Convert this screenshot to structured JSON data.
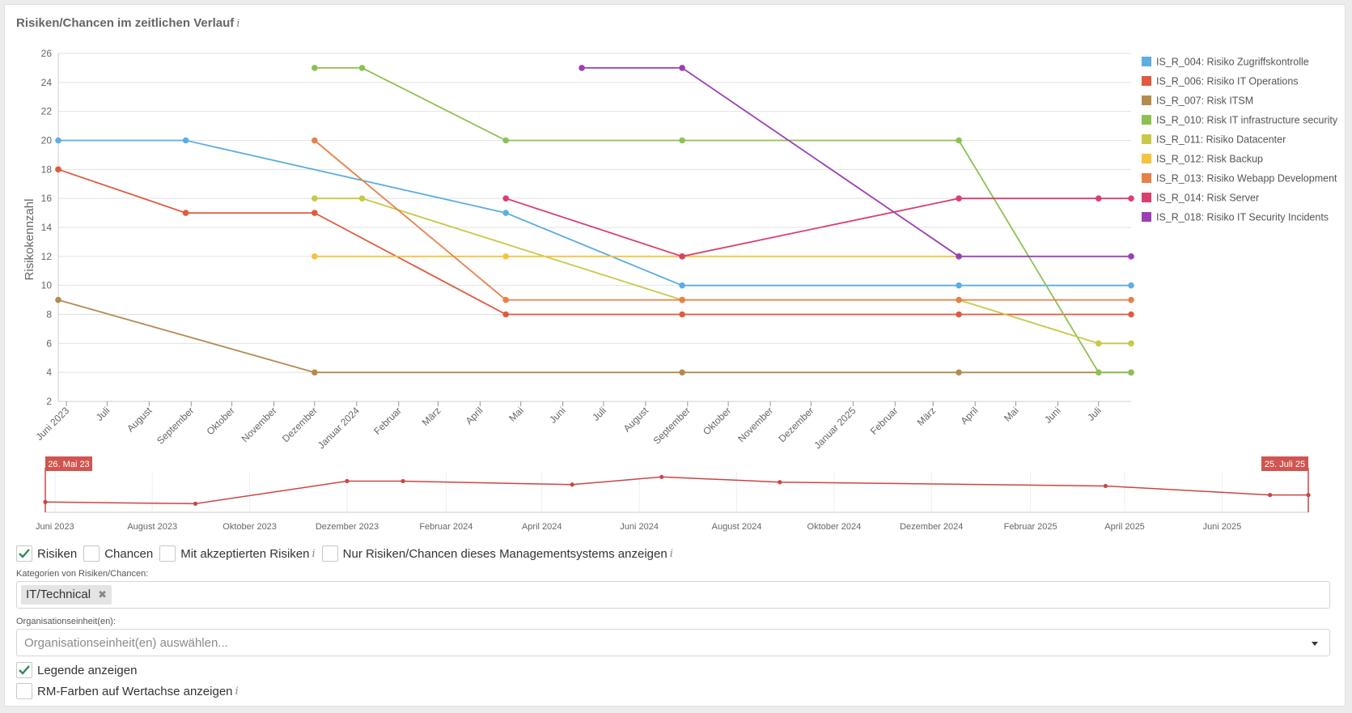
{
  "title": "Risiken/Chancen im zeitlichen Verlauf",
  "title_info": "i",
  "chart_data": {
    "type": "line",
    "title": "Risiken/Chancen im zeitlichen Verlauf",
    "ylabel": "Risikokennzahl",
    "ylim": [
      2,
      26
    ],
    "yticks": [
      2,
      4,
      6,
      8,
      10,
      12,
      14,
      16,
      18,
      20,
      22,
      24,
      26
    ],
    "xlim": [
      "2023-05-26",
      "2025-07-25"
    ],
    "x_ticks": [
      {
        "date": "2023-06-01",
        "label": "Juni 2023"
      },
      {
        "date": "2023-07-01",
        "label": "Juli"
      },
      {
        "date": "2023-08-01",
        "label": "August"
      },
      {
        "date": "2023-09-01",
        "label": "September"
      },
      {
        "date": "2023-10-01",
        "label": "Oktober"
      },
      {
        "date": "2023-11-01",
        "label": "November"
      },
      {
        "date": "2023-12-01",
        "label": "Dezember"
      },
      {
        "date": "2024-01-01",
        "label": "Januar 2024"
      },
      {
        "date": "2024-02-01",
        "label": "Februar"
      },
      {
        "date": "2024-03-01",
        "label": "März"
      },
      {
        "date": "2024-04-01",
        "label": "April"
      },
      {
        "date": "2024-05-01",
        "label": "Mai"
      },
      {
        "date": "2024-06-01",
        "label": "Juni"
      },
      {
        "date": "2024-07-01",
        "label": "Juli"
      },
      {
        "date": "2024-08-01",
        "label": "August"
      },
      {
        "date": "2024-09-01",
        "label": "September"
      },
      {
        "date": "2024-10-01",
        "label": "Oktober"
      },
      {
        "date": "2024-11-01",
        "label": "November"
      },
      {
        "date": "2024-12-01",
        "label": "Dezember"
      },
      {
        "date": "2025-01-01",
        "label": "Januar 2025"
      },
      {
        "date": "2025-02-01",
        "label": "Februar"
      },
      {
        "date": "2025-03-01",
        "label": "März"
      },
      {
        "date": "2025-04-01",
        "label": "April"
      },
      {
        "date": "2025-05-01",
        "label": "Mai"
      },
      {
        "date": "2025-06-01",
        "label": "Juni"
      },
      {
        "date": "2025-07-01",
        "label": "Juli"
      }
    ],
    "legend_position": "right",
    "series": [
      {
        "name": "IS_R_004: Risiko Zugriffskontrolle",
        "color": "#5dade2",
        "points": [
          [
            "2023-05-26",
            20
          ],
          [
            "2023-08-28",
            20
          ],
          [
            "2024-04-20",
            15
          ],
          [
            "2024-08-28",
            10
          ],
          [
            "2025-03-20",
            10
          ],
          [
            "2025-07-25",
            10
          ]
        ]
      },
      {
        "name": "IS_R_006: Risiko IT Operations",
        "color": "#e05a3e",
        "points": [
          [
            "2023-05-26",
            18
          ],
          [
            "2023-08-28",
            15
          ],
          [
            "2023-12-01",
            15
          ],
          [
            "2024-04-20",
            8
          ],
          [
            "2024-08-28",
            8
          ],
          [
            "2025-03-20",
            8
          ],
          [
            "2025-07-25",
            8
          ]
        ]
      },
      {
        "name": "IS_R_007: Risk ITSM",
        "color": "#b58a4f",
        "points": [
          [
            "2023-05-26",
            9
          ],
          [
            "2023-12-01",
            4
          ],
          [
            "2024-08-28",
            4
          ],
          [
            "2025-03-20",
            4
          ],
          [
            "2025-07-25",
            4
          ]
        ]
      },
      {
        "name": "IS_R_010: Risk IT infrastructure security",
        "color": "#8cc152",
        "points": [
          [
            "2023-12-01",
            25
          ],
          [
            "2024-01-05",
            25
          ],
          [
            "2024-04-20",
            20
          ],
          [
            "2024-08-28",
            20
          ],
          [
            "2025-03-20",
            20
          ],
          [
            "2025-07-01",
            4
          ],
          [
            "2025-07-25",
            4
          ]
        ]
      },
      {
        "name": "IS_R_011: Risiko Datacenter",
        "color": "#c8c84a",
        "points": [
          [
            "2023-12-01",
            16
          ],
          [
            "2024-01-05",
            16
          ],
          [
            "2024-08-28",
            9
          ],
          [
            "2025-03-20",
            9
          ],
          [
            "2025-07-01",
            6
          ],
          [
            "2025-07-25",
            6
          ]
        ]
      },
      {
        "name": "IS_R_012: Risk Backup",
        "color": "#f5c342",
        "points": [
          [
            "2023-12-01",
            12
          ],
          [
            "2024-04-20",
            12
          ],
          [
            "2024-08-28",
            12
          ],
          [
            "2025-03-20",
            12
          ]
        ]
      },
      {
        "name": "IS_R_013: Risiko Webapp Development",
        "color": "#e8804a",
        "points": [
          [
            "2023-12-01",
            20
          ],
          [
            "2024-04-20",
            9
          ],
          [
            "2024-08-28",
            9
          ],
          [
            "2025-03-20",
            9
          ],
          [
            "2025-07-25",
            9
          ]
        ]
      },
      {
        "name": "IS_R_014: Risk Server",
        "color": "#d9406e",
        "points": [
          [
            "2024-04-20",
            16
          ],
          [
            "2024-08-28",
            12
          ],
          [
            "2025-03-20",
            16
          ],
          [
            "2025-07-01",
            16
          ],
          [
            "2025-07-25",
            16
          ]
        ]
      },
      {
        "name": "IS_R_018: Risiko IT Security Incidents",
        "color": "#9b3fb5",
        "points": [
          [
            "2024-06-15",
            25
          ],
          [
            "2024-08-28",
            25
          ],
          [
            "2025-03-20",
            12
          ],
          [
            "2025-07-25",
            12
          ]
        ]
      }
    ],
    "navigator": {
      "range_start_label": "26. Mai 23",
      "range_end_label": "25. Juli 25",
      "color": "#cc4444",
      "x_ticks": [
        {
          "date": "2023-06-01",
          "label": "Juni 2023"
        },
        {
          "date": "2023-08-01",
          "label": "August 2023"
        },
        {
          "date": "2023-10-01",
          "label": "Oktober 2023"
        },
        {
          "date": "2023-12-01",
          "label": "Dezember 2023"
        },
        {
          "date": "2024-02-01",
          "label": "Februar 2024"
        },
        {
          "date": "2024-04-01",
          "label": "April 2024"
        },
        {
          "date": "2024-06-01",
          "label": "Juni 2024"
        },
        {
          "date": "2024-08-01",
          "label": "August 2024"
        },
        {
          "date": "2024-10-01",
          "label": "Oktober 2024"
        },
        {
          "date": "2024-12-01",
          "label": "Dezember 2024"
        },
        {
          "date": "2025-02-01",
          "label": "Februar 2025"
        },
        {
          "date": "2025-04-01",
          "label": "April 2025"
        },
        {
          "date": "2025-06-01",
          "label": "Juni 2025"
        }
      ],
      "points": [
        [
          "2023-05-26",
          0.25
        ],
        [
          "2023-08-28",
          0.2
        ],
        [
          "2023-12-01",
          0.85
        ],
        [
          "2024-01-05",
          0.85
        ],
        [
          "2024-04-20",
          0.75
        ],
        [
          "2024-06-15",
          0.97
        ],
        [
          "2024-08-28",
          0.82
        ],
        [
          "2025-03-20",
          0.71
        ],
        [
          "2025-07-01",
          0.45
        ],
        [
          "2025-07-25",
          0.45
        ]
      ]
    }
  },
  "filters": {
    "risiken": {
      "label": "Risiken",
      "checked": true
    },
    "chancen": {
      "label": "Chancen",
      "checked": false
    },
    "akzeptiert": {
      "label": "Mit akzeptierten Risiken",
      "info": "i",
      "checked": false
    },
    "nur_dieses": {
      "label": "Nur Risiken/Chancen dieses Managementsystems anzeigen",
      "info": "i",
      "checked": false
    }
  },
  "categories": {
    "label": "Kategorien von Risiken/Chancen:",
    "tags": [
      "IT/Technical"
    ],
    "remove_symbol": "✖"
  },
  "org_units": {
    "label": "Organisationseinheit(en):",
    "placeholder": "Organisationseinheit(en) auswählen..."
  },
  "options": {
    "legend": {
      "label": "Legende anzeigen",
      "checked": true
    },
    "rm_colors": {
      "label": "RM-Farben auf Wertachse anzeigen",
      "info": "i",
      "checked": false
    }
  }
}
